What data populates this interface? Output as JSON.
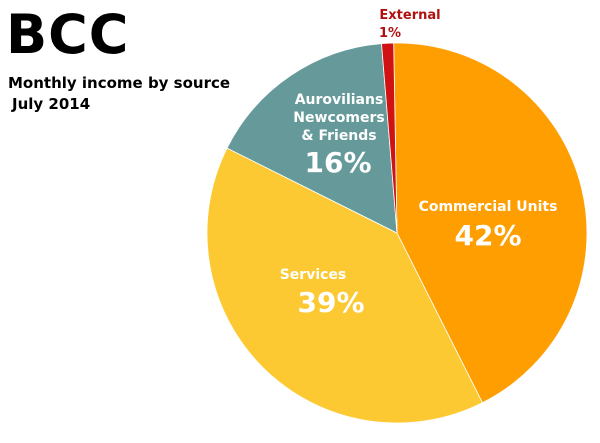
{
  "title": "BCC",
  "subtitle": "Monthly income by source",
  "date": "July 2014",
  "chart_data": {
    "type": "pie",
    "title": "BCC",
    "subtitle": "Monthly income by source",
    "period": "July 2014",
    "categories": [
      "Commercial Units",
      "Services",
      "Aurovilians Newcomers & Friends",
      "External"
    ],
    "values": [
      42,
      39,
      16,
      1
    ],
    "unit": "%",
    "value_labels": [
      "42%",
      "39%",
      "16%",
      "1%"
    ],
    "colors": [
      "#FF9E00",
      "#FDC933",
      "#669A9A",
      "#D01212"
    ],
    "slice_order": "clockwise from top",
    "label_lines": [
      [
        "Commercial Units"
      ],
      [
        "Services"
      ],
      [
        "Aurovilians",
        "Newcomers",
        "& Friends"
      ],
      [
        "External"
      ]
    ],
    "label_colors": [
      "#ffffff",
      "#ffffff",
      "#ffffff",
      "#B01010"
    ],
    "legend": "none",
    "grid": false
  }
}
